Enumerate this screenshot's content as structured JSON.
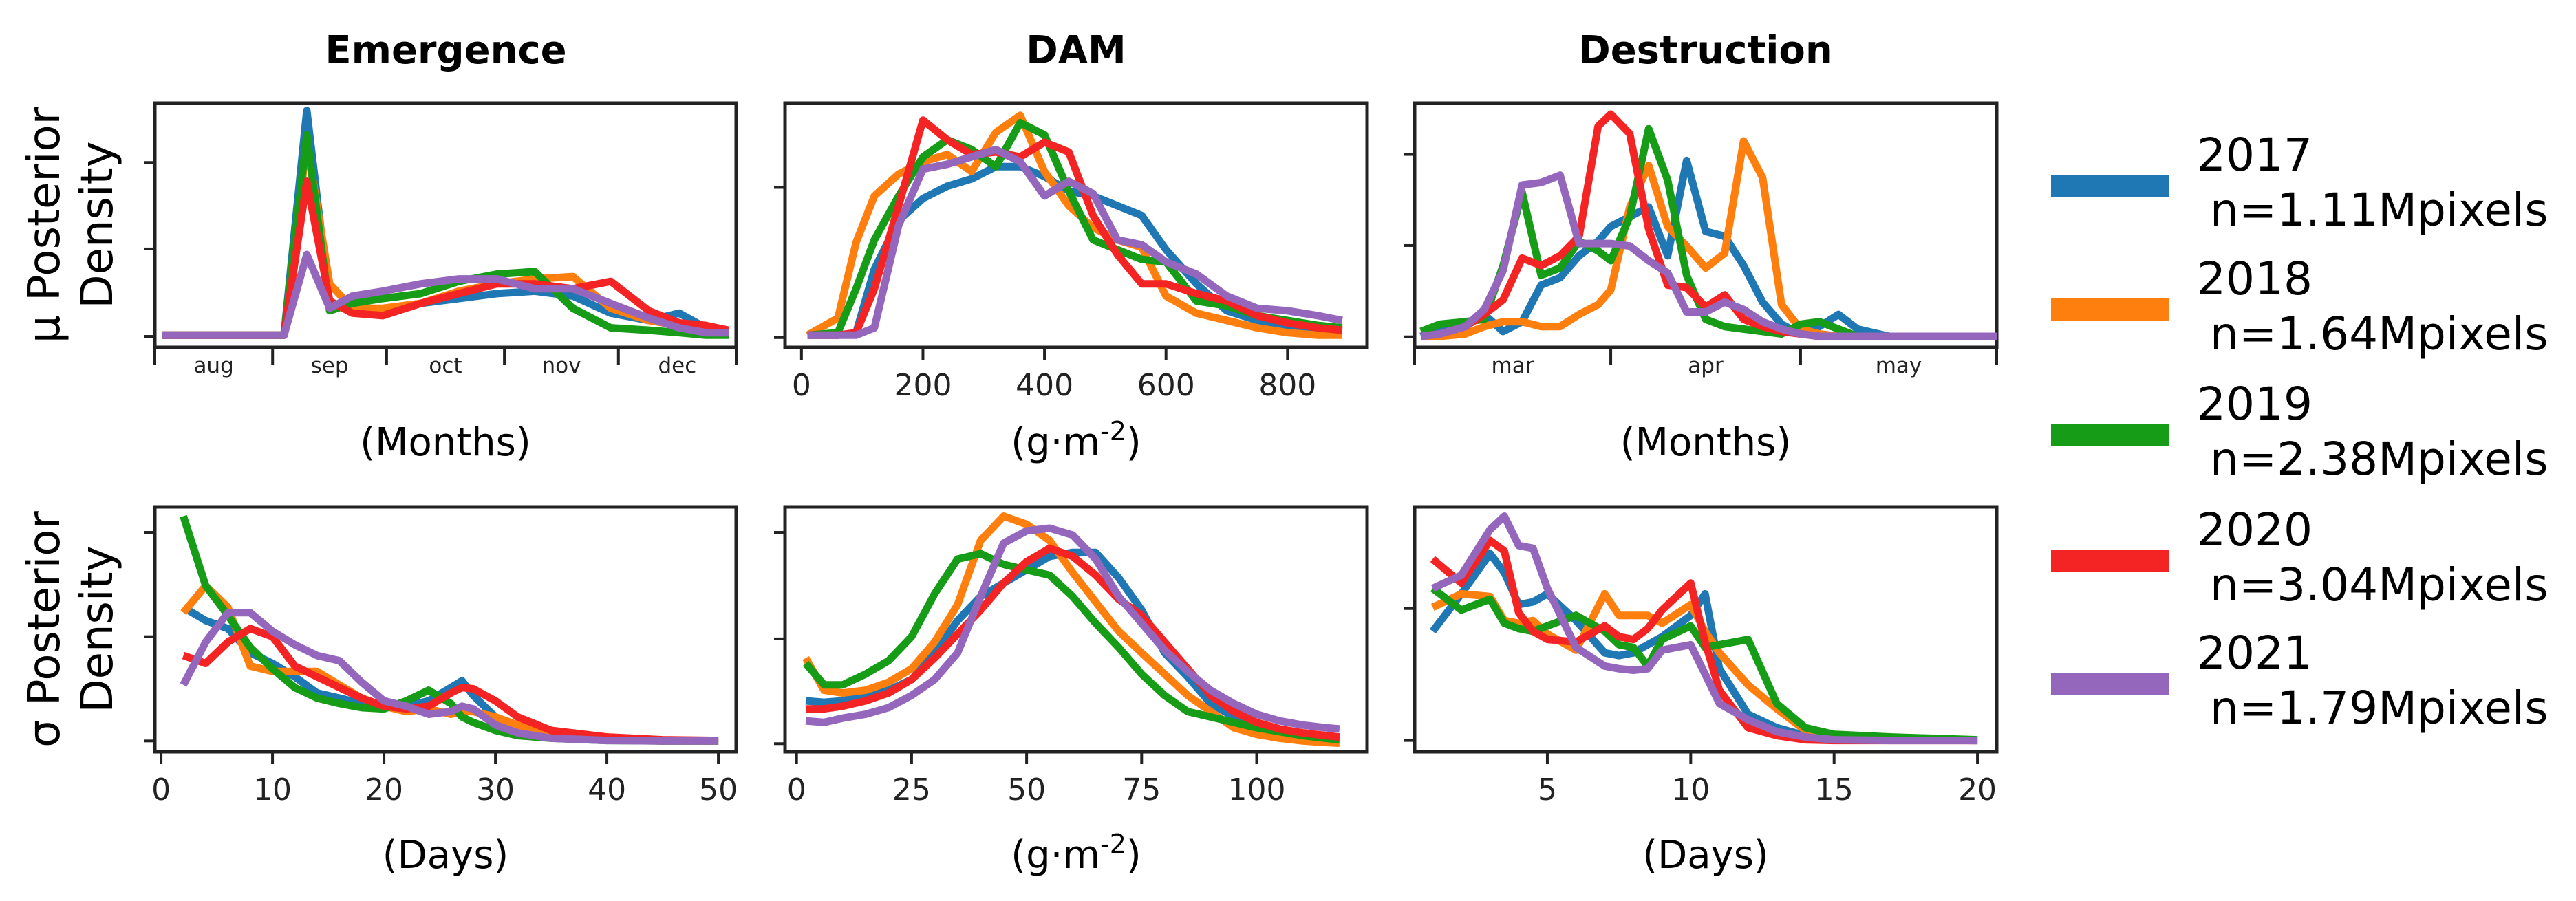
{
  "column_titles": [
    "Emergence",
    "DAM",
    "Destruction"
  ],
  "row_labels": [
    {
      "line1": "μ Posterior",
      "line2": "Density"
    },
    {
      "line1": "σ Posterior",
      "line2": "Density"
    }
  ],
  "legend": [
    {
      "year": "2017",
      "count": "n=1.11Mpixels",
      "color": "#1f77b4"
    },
    {
      "year": "2018",
      "count": "n=1.64Mpixels",
      "color": "#ff7f0e"
    },
    {
      "year": "2019",
      "count": "n=2.38Mpixels",
      "color": "#169c16"
    },
    {
      "year": "2020",
      "count": "n=3.04Mpixels",
      "color": "#f42424"
    },
    {
      "year": "2021",
      "count": "n=1.79Mpixels",
      "color": "#9467bd"
    }
  ],
  "chart_data": [
    {
      "type": "line",
      "id": "mu-emergence",
      "xlabel": "(Months)",
      "ylabel": "μ Posterior Density",
      "xunit": "days since Aug 1",
      "xlim": [
        0,
        153
      ],
      "ylim": [
        0,
        100
      ],
      "yticks": [
        4.5,
        40.3,
        75.7
      ],
      "month_boundaries": [
        0,
        31,
        61,
        92,
        122,
        153
      ],
      "month_labels": [
        "aug",
        "sep",
        "oct",
        "nov",
        "dec"
      ],
      "x": [
        2,
        34,
        40,
        46,
        52,
        60,
        70,
        80,
        90,
        100,
        110,
        120,
        130,
        138,
        145,
        151
      ],
      "series": [
        {
          "name": "2017",
          "values": [
            5,
            5,
            97,
            18,
            15,
            15,
            18,
            20,
            22,
            23,
            21,
            14,
            11,
            14,
            8,
            6
          ]
        },
        {
          "name": "2018",
          "values": [
            5,
            5,
            84,
            26,
            16,
            16,
            18,
            23,
            26,
            28,
            29,
            16,
            11,
            9,
            7,
            6
          ]
        },
        {
          "name": "2019",
          "values": [
            5,
            5,
            87,
            15,
            18,
            20,
            22,
            27,
            30,
            31,
            16,
            8,
            7,
            6,
            5,
            5
          ]
        },
        {
          "name": "2020",
          "values": [
            5,
            5,
            68,
            19,
            14,
            13,
            18,
            22,
            26,
            26,
            24,
            27,
            15,
            10,
            9,
            7
          ]
        },
        {
          "name": "2021",
          "values": [
            5,
            5,
            38,
            16,
            21,
            23,
            26,
            28,
            28,
            24,
            24,
            18,
            12,
            8,
            6,
            6
          ]
        }
      ]
    },
    {
      "type": "line",
      "id": "mu-dam",
      "xlabel": "(g·m",
      "xlabel_sup": "-2",
      "xlabel_end": ")",
      "ylabel": "μ Posterior Density",
      "xlim": [
        -27,
        931
      ],
      "ylim": [
        0,
        100
      ],
      "yticks": [
        4,
        65.5
      ],
      "xticks": [
        0,
        200,
        400,
        600,
        800
      ],
      "xtick_labels": [
        "0",
        "200",
        "400",
        "600",
        "800"
      ],
      "x": [
        10,
        60,
        90,
        120,
        160,
        200,
        240,
        280,
        320,
        360,
        400,
        440,
        480,
        520,
        560,
        600,
        650,
        700,
        750,
        800,
        850,
        890
      ],
      "series": [
        {
          "name": "2017",
          "values": [
            5,
            5,
            6,
            32,
            52,
            61,
            66,
            69,
            74,
            74,
            70,
            64,
            62,
            58,
            54,
            40,
            26,
            15,
            11,
            9,
            8,
            7
          ]
        },
        {
          "name": "2018",
          "values": [
            5,
            12,
            43,
            62,
            71,
            76,
            79,
            72,
            88,
            95,
            72,
            58,
            49,
            44,
            41,
            21,
            14,
            11,
            8,
            6,
            5,
            5
          ]
        },
        {
          "name": "2019",
          "values": [
            5,
            6,
            24,
            44,
            62,
            78,
            85,
            81,
            74,
            92,
            87,
            64,
            44,
            40,
            36,
            35,
            19,
            17,
            13,
            11,
            9,
            8
          ]
        },
        {
          "name": "2020",
          "values": [
            5,
            5,
            6,
            24,
            58,
            93,
            85,
            79,
            80,
            78,
            84,
            80,
            54,
            38,
            26,
            26,
            22,
            19,
            13,
            10,
            8,
            7
          ]
        },
        {
          "name": "2021",
          "values": [
            5,
            5,
            5,
            8,
            50,
            73,
            75,
            78,
            81,
            76,
            62,
            68,
            63,
            44,
            42,
            35,
            30,
            21,
            16,
            15,
            13,
            11
          ]
        }
      ]
    },
    {
      "type": "line",
      "id": "mu-destruction",
      "xlabel": "(Months)",
      "ylabel": "μ Posterior Density",
      "xunit": "days since Mar 1",
      "xlim": [
        0,
        92
      ],
      "ylim": [
        0,
        100
      ],
      "yticks": [
        4.3,
        41.7,
        79
      ],
      "month_boundaries": [
        0,
        31,
        61,
        92
      ],
      "month_labels": [
        "mar",
        "apr",
        "may"
      ],
      "x": [
        1,
        4,
        8,
        11,
        14,
        17,
        20,
        23,
        26,
        29,
        31,
        34,
        37,
        40,
        43,
        46,
        49,
        52,
        55,
        58,
        61,
        64,
        67,
        70,
        75,
        80,
        92
      ],
      "series": [
        {
          "name": "2017",
          "values": [
            4.5,
            7.5,
            9.5,
            13.5,
            6.5,
            10.5,
            25.5,
            28.5,
            37.5,
            43.5,
            49.5,
            53.5,
            57.5,
            37.5,
            76.5,
            47.5,
            45.5,
            33.5,
            18.5,
            9.5,
            5.5,
            8.5,
            13.5,
            7.5,
            4.5,
            4.5,
            4.5
          ]
        },
        {
          "name": "2018",
          "values": [
            4.5,
            4.5,
            5.5,
            8.5,
            10.5,
            10.5,
            8.5,
            8.5,
            13.5,
            17.5,
            23.5,
            57.5,
            74.5,
            49.5,
            41.5,
            32.5,
            38.5,
            84.5,
            69.5,
            17.5,
            7.5,
            5.5,
            4.5,
            4.5,
            4.5,
            4.5,
            4.5
          ]
        },
        {
          "name": "2019",
          "values": [
            6.5,
            9.5,
            10.5,
            11.5,
            33.5,
            63.5,
            29.5,
            32.5,
            43.5,
            39.5,
            35.5,
            53.5,
            89.5,
            68.5,
            29.5,
            11.5,
            8.5,
            7.5,
            6.5,
            5.5,
            9.5,
            10.5,
            7.5,
            4.5,
            4.5,
            4.5,
            4.5
          ]
        },
        {
          "name": "2020",
          "values": [
            4.5,
            5.5,
            8.5,
            13.5,
            19.5,
            36.5,
            33.5,
            37.5,
            45.5,
            90.5,
            95.5,
            87.5,
            48.5,
            25.5,
            24.5,
            16.5,
            21.5,
            11.5,
            8.5,
            6.5,
            5.5,
            4.5,
            4.5,
            4.5,
            4.5,
            4.5,
            4.5
          ]
        },
        {
          "name": "2021",
          "values": [
            4.5,
            5.5,
            8.5,
            15.5,
            31.5,
            66.5,
            67.5,
            70.5,
            42.5,
            42.5,
            42.5,
            41.5,
            35.5,
            30.5,
            14.5,
            14.5,
            18.5,
            15.5,
            10.5,
            7.5,
            5.5,
            4.5,
            4.5,
            4.5,
            4.5,
            4.5,
            4.5
          ]
        }
      ]
    },
    {
      "type": "line",
      "id": "sigma-emergence",
      "xlabel": "(Days)",
      "ylabel": "σ Posterior Density",
      "xlim": [
        -0.56,
        51.6
      ],
      "ylim": [
        0,
        100
      ],
      "yticks": [
        4.4,
        47,
        89.6
      ],
      "xticks": [
        0,
        10,
        20,
        30,
        40,
        50
      ],
      "xtick_labels": [
        "0",
        "10",
        "20",
        "30",
        "40",
        "50"
      ],
      "x": [
        2,
        4,
        6,
        8,
        10,
        12,
        14,
        16,
        18,
        20,
        22,
        24,
        26,
        27,
        28,
        30,
        32,
        35,
        40,
        45,
        50
      ],
      "series": [
        {
          "name": "2017",
          "values": [
            59,
            53.6,
            50.3,
            40.4,
            36.1,
            30.6,
            24,
            21.9,
            19.7,
            18.6,
            18.6,
            20.8,
            26.2,
            29,
            23,
            14.2,
            9.8,
            6.6,
            4.9,
            4.4,
            4.4
          ]
        },
        {
          "name": "2018",
          "values": [
            56.8,
            67.8,
            59,
            35,
            32.8,
            32.8,
            32.8,
            27.3,
            21.9,
            18.6,
            16.4,
            17.5,
            15.3,
            16.4,
            16.4,
            14.2,
            10.9,
            6.6,
            4.9,
            4.4,
            4.4
          ]
        },
        {
          "name": "2019",
          "values": [
            96.2,
            67.8,
            55.7,
            42.6,
            33.9,
            26.2,
            21.9,
            19.7,
            18,
            17.5,
            20.8,
            25.1,
            19.7,
            14.2,
            12,
            8.7,
            6.6,
            5.5,
            4.6,
            4.4,
            4.4
          ]
        },
        {
          "name": "2020",
          "values": [
            39.3,
            36.1,
            44.8,
            50.3,
            47,
            35,
            30.6,
            26.2,
            21.9,
            18.6,
            17.5,
            18.6,
            24,
            26.2,
            25.7,
            20.8,
            14.2,
            8.7,
            6,
            4.9,
            4.6
          ]
        },
        {
          "name": "2021",
          "values": [
            27.3,
            44.8,
            56.8,
            56.8,
            49.2,
            43.7,
            39.3,
            37.2,
            28.4,
            20.8,
            18.6,
            15.3,
            16.4,
            18.6,
            17.5,
            10.9,
            7.7,
            5.5,
            4.6,
            4.4,
            4.4
          ]
        }
      ]
    },
    {
      "type": "line",
      "id": "sigma-dam",
      "xlabel": "(g·m",
      "xlabel_sup": "-2",
      "xlabel_end": ")",
      "ylabel": "σ Posterior Density",
      "xlim": [
        -2.5,
        124
      ],
      "ylim": [
        0,
        100
      ],
      "yticks": [
        3.3,
        46.1,
        89.6
      ],
      "xticks": [
        0,
        25,
        50,
        75,
        100
      ],
      "xtick_labels": [
        "0",
        "25",
        "50",
        "75",
        "100"
      ],
      "x": [
        2,
        6,
        10,
        15,
        20,
        25,
        30,
        35,
        40,
        45,
        50,
        55,
        60,
        65,
        70,
        75,
        80,
        85,
        90,
        95,
        100,
        105,
        110,
        115,
        118
      ],
      "series": [
        {
          "name": "2017",
          "values": [
            20.8,
            20.2,
            20.8,
            23,
            25.1,
            29.5,
            40.4,
            53.6,
            63.4,
            68.9,
            74.3,
            79.8,
            81.4,
            81.4,
            71,
            57.9,
            40.4,
            30.6,
            19.7,
            14.2,
            10.9,
            8.7,
            7.1,
            5.5,
            4.9
          ]
        },
        {
          "name": "2018",
          "values": [
            38.3,
            25.1,
            24,
            25.1,
            28.4,
            33.9,
            44.8,
            60.1,
            86.3,
            96.2,
            92.9,
            86.3,
            73.2,
            61.2,
            49.2,
            40.4,
            31.7,
            23,
            16.4,
            9.8,
            7.1,
            5.5,
            4.4,
            3.8,
            3.5
          ]
        },
        {
          "name": "2019",
          "values": [
            36.1,
            27.3,
            27.3,
            31.7,
            37.2,
            47,
            64.5,
            78.7,
            80.9,
            76.5,
            74.3,
            72.1,
            63.4,
            52.5,
            42.6,
            31.7,
            23,
            16.4,
            14.2,
            12,
            9.8,
            8.2,
            6.6,
            5.5,
            4.9
          ]
        },
        {
          "name": "2020",
          "values": [
            17.5,
            17.5,
            18.6,
            20.8,
            24,
            29.5,
            38.3,
            48.1,
            57.9,
            68.9,
            77.6,
            83.1,
            79.8,
            72.1,
            62.3,
            55.7,
            44.8,
            33.9,
            23,
            16.4,
            12,
            9.3,
            7.7,
            6.6,
            6
          ]
        },
        {
          "name": "2021",
          "values": [
            12.6,
            12,
            13.7,
            15.3,
            18,
            23,
            29.5,
            40.4,
            63.4,
            85.2,
            90.2,
            91.3,
            88.5,
            78.7,
            63.4,
            52.5,
            41.5,
            32.8,
            25.1,
            19.7,
            15.3,
            12.6,
            10.9,
            9.8,
            9.3
          ]
        }
      ]
    },
    {
      "type": "line",
      "id": "sigma-destruction",
      "xlabel": "(Days)",
      "ylabel": "σ Posterior Density",
      "xlim": [
        0.37,
        20.67
      ],
      "ylim": [
        0,
        100
      ],
      "yticks": [
        4.6,
        58.5
      ],
      "xticks": [
        5,
        10,
        15,
        20
      ],
      "xtick_labels": [
        "5",
        "10",
        "15",
        "20"
      ],
      "x": [
        1,
        2,
        3,
        3.5,
        4,
        4.5,
        5,
        6,
        7,
        7.5,
        8,
        8.5,
        9,
        10,
        10.5,
        11,
        12,
        13,
        14,
        15,
        17,
        20
      ],
      "series": [
        {
          "name": "2017",
          "values": [
            49.2,
            64.5,
            80.9,
            73.2,
            60.1,
            61.2,
            64.5,
            53.6,
            40.4,
            39.3,
            40.4,
            43.7,
            47,
            55.7,
            64.5,
            33.9,
            15.3,
            9.8,
            6.6,
            5.5,
            4.9,
            4.6
          ]
        },
        {
          "name": "2018",
          "values": [
            59,
            64.5,
            63.4,
            53.6,
            52.5,
            53.6,
            48.1,
            41.5,
            64.5,
            55.7,
            55.7,
            55.7,
            52.5,
            60.1,
            49.2,
            40.4,
            27.3,
            17.5,
            8.7,
            6,
            4.9,
            4.6
          ]
        },
        {
          "name": "2019",
          "values": [
            66.7,
            57.9,
            62.3,
            52.5,
            50.3,
            49.2,
            51.4,
            55.7,
            49.2,
            43.7,
            42.6,
            35,
            45.9,
            51.4,
            42.6,
            43.7,
            45.9,
            19.7,
            9.8,
            7.1,
            6,
            4.9
          ]
        },
        {
          "name": "2020",
          "values": [
            78.7,
            68.9,
            86.3,
            82,
            56.8,
            49.2,
            45.9,
            44.8,
            51.4,
            47,
            45.9,
            50.3,
            57.9,
            68.9,
            44.8,
            25.1,
            9.8,
            6.6,
            4.9,
            4.6,
            4.6,
            4.6
          ]
        },
        {
          "name": "2021",
          "values": [
            66.7,
            72.1,
            90.7,
            96.2,
            84.2,
            83.1,
            66.7,
            42.6,
            35,
            33.9,
            33.3,
            33.9,
            41.5,
            43.7,
            31.7,
            19.7,
            13.1,
            8.2,
            6,
            4.9,
            4.6,
            4.6
          ]
        }
      ]
    }
  ]
}
